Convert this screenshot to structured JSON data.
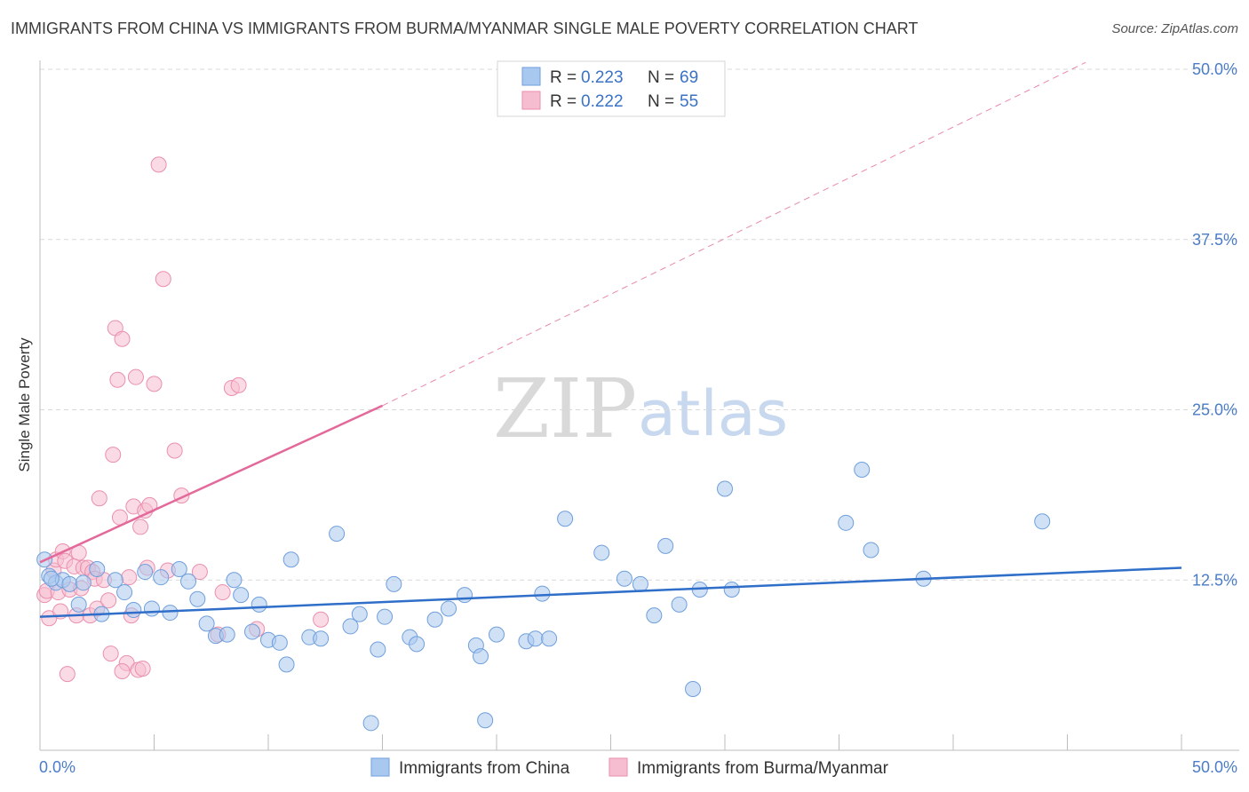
{
  "header": {
    "title": "IMMIGRANTS FROM CHINA VS IMMIGRANTS FROM BURMA/MYANMAR SINGLE MALE POVERTY CORRELATION CHART",
    "source": "Source: ZipAtlas.com"
  },
  "watermark": {
    "zip": "ZIP",
    "atlas": "atlas"
  },
  "legend": {
    "rows": [
      {
        "r_label": "R =",
        "r_value": "0.223",
        "n_label": "N =",
        "n_value": "69"
      },
      {
        "r_label": "R =",
        "r_value": "0.222",
        "n_label": "N =",
        "n_value": "55"
      }
    ]
  },
  "colors": {
    "china_fill": "#a9c8ef",
    "china_stroke": "#6f9fdc",
    "china_line": "#2f6fc9",
    "burma_fill": "#f6bdd0",
    "burma_stroke": "#eb8fae",
    "burma_line": "#e3699a",
    "grid": "#d9d9d9",
    "tick_text": "#4a7cc7"
  },
  "chart_data": {
    "type": "scatter",
    "title": "IMMIGRANTS FROM CHINA VS IMMIGRANTS FROM BURMA/MYANMAR SINGLE MALE POVERTY CORRELATION CHART",
    "ylabel": "Single Male Poverty",
    "xlim": [
      0,
      50
    ],
    "ylim": [
      0,
      50
    ],
    "x_tick_labels": [
      "0.0%",
      "50.0%"
    ],
    "y_ticks": [
      12.5,
      25.0,
      37.5,
      50.0
    ],
    "y_tick_labels": [
      "12.5%",
      "25.0%",
      "37.5%",
      "50.0%"
    ],
    "grid": true,
    "legend_position": "top-center",
    "series": [
      {
        "name": "Immigrants from China",
        "R": 0.223,
        "N": 69,
        "trend": {
          "x": [
            0,
            50
          ],
          "y": [
            9.8,
            13.4
          ]
        },
        "points": [
          [
            0.2,
            14.0
          ],
          [
            0.4,
            12.8
          ],
          [
            0.7,
            12.3
          ],
          [
            1.0,
            12.5
          ],
          [
            1.3,
            12.2
          ],
          [
            1.7,
            10.7
          ],
          [
            2.5,
            13.3
          ],
          [
            2.7,
            10.0
          ],
          [
            3.3,
            12.5
          ],
          [
            3.7,
            11.6
          ],
          [
            4.1,
            10.3
          ],
          [
            4.6,
            13.1
          ],
          [
            4.9,
            10.4
          ],
          [
            5.3,
            12.7
          ],
          [
            5.7,
            10.1
          ],
          [
            6.1,
            13.3
          ],
          [
            6.5,
            12.4
          ],
          [
            6.9,
            11.1
          ],
          [
            7.3,
            9.3
          ],
          [
            7.7,
            8.4
          ],
          [
            8.2,
            8.5
          ],
          [
            8.5,
            12.5
          ],
          [
            8.8,
            11.4
          ],
          [
            9.3,
            8.7
          ],
          [
            9.6,
            10.7
          ],
          [
            10.0,
            8.1
          ],
          [
            10.5,
            7.9
          ],
          [
            10.8,
            6.3
          ],
          [
            11.0,
            14.0
          ],
          [
            11.8,
            8.3
          ],
          [
            12.3,
            8.2
          ],
          [
            13.0,
            15.9
          ],
          [
            13.6,
            9.1
          ],
          [
            14.0,
            10.0
          ],
          [
            14.5,
            2.0
          ],
          [
            14.8,
            7.4
          ],
          [
            15.1,
            9.8
          ],
          [
            15.5,
            12.2
          ],
          [
            16.2,
            8.3
          ],
          [
            16.5,
            7.8
          ],
          [
            17.3,
            9.6
          ],
          [
            17.9,
            10.4
          ],
          [
            18.6,
            11.4
          ],
          [
            19.1,
            7.7
          ],
          [
            19.3,
            6.9
          ],
          [
            19.5,
            2.2
          ],
          [
            20.0,
            8.5
          ],
          [
            21.3,
            8.0
          ],
          [
            21.7,
            8.2
          ],
          [
            22.0,
            11.5
          ],
          [
            22.3,
            8.2
          ],
          [
            23.0,
            17.0
          ],
          [
            24.6,
            14.5
          ],
          [
            25.6,
            12.6
          ],
          [
            26.3,
            12.2
          ],
          [
            26.9,
            9.9
          ],
          [
            27.4,
            15.0
          ],
          [
            28.0,
            10.7
          ],
          [
            28.6,
            4.5
          ],
          [
            28.9,
            11.8
          ],
          [
            30.0,
            19.2
          ],
          [
            30.3,
            11.8
          ],
          [
            35.3,
            16.7
          ],
          [
            36.0,
            20.6
          ],
          [
            36.4,
            14.7
          ],
          [
            38.7,
            12.6
          ],
          [
            43.9,
            16.8
          ],
          [
            0.5,
            12.6
          ],
          [
            1.9,
            12.3
          ]
        ]
      },
      {
        "name": "Immigrants from Burma/Myanmar",
        "R": 0.222,
        "N": 55,
        "trend": {
          "x": [
            0,
            15
          ],
          "y": [
            13.8,
            25.3
          ],
          "extended": {
            "x": [
              15,
              45.8
            ],
            "y": [
              25.3,
              50.5
            ]
          }
        },
        "points": [
          [
            0.2,
            11.4
          ],
          [
            0.3,
            11.7
          ],
          [
            0.4,
            9.7
          ],
          [
            0.6,
            13.2
          ],
          [
            0.7,
            14.0
          ],
          [
            0.8,
            11.6
          ],
          [
            0.9,
            10.2
          ],
          [
            1.0,
            14.6
          ],
          [
            1.1,
            13.9
          ],
          [
            1.3,
            11.8
          ],
          [
            1.5,
            13.5
          ],
          [
            1.6,
            9.9
          ],
          [
            1.7,
            14.5
          ],
          [
            1.8,
            11.9
          ],
          [
            1.9,
            13.4
          ],
          [
            2.1,
            13.4
          ],
          [
            2.2,
            9.9
          ],
          [
            2.3,
            13.1
          ],
          [
            2.4,
            12.6
          ],
          [
            2.5,
            10.4
          ],
          [
            2.6,
            18.5
          ],
          [
            2.8,
            12.5
          ],
          [
            3.0,
            11.0
          ],
          [
            3.1,
            7.1
          ],
          [
            3.2,
            21.7
          ],
          [
            3.3,
            31.0
          ],
          [
            3.4,
            27.2
          ],
          [
            3.5,
            17.1
          ],
          [
            3.6,
            30.2
          ],
          [
            3.8,
            6.4
          ],
          [
            3.9,
            12.7
          ],
          [
            4.0,
            9.9
          ],
          [
            4.1,
            17.9
          ],
          [
            4.2,
            27.4
          ],
          [
            4.3,
            5.9
          ],
          [
            4.4,
            16.4
          ],
          [
            4.5,
            6.0
          ],
          [
            4.6,
            17.6
          ],
          [
            4.7,
            13.4
          ],
          [
            4.8,
            18.0
          ],
          [
            5.0,
            26.9
          ],
          [
            5.2,
            43.0
          ],
          [
            5.4,
            34.6
          ],
          [
            5.6,
            13.2
          ],
          [
            5.9,
            22.0
          ],
          [
            6.2,
            18.7
          ],
          [
            7.0,
            13.1
          ],
          [
            7.8,
            8.5
          ],
          [
            8.0,
            11.6
          ],
          [
            8.4,
            26.6
          ],
          [
            8.7,
            26.8
          ],
          [
            9.5,
            8.9
          ],
          [
            12.3,
            9.6
          ],
          [
            3.6,
            5.8
          ],
          [
            1.2,
            5.6
          ]
        ]
      }
    ]
  },
  "bottom_legend": {
    "china": "Immigrants from China",
    "burma": "Immigrants from Burma/Myanmar"
  }
}
